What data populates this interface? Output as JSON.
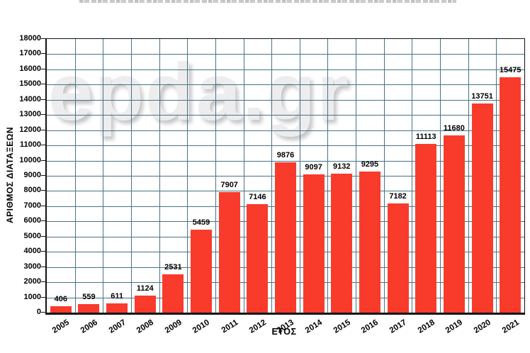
{
  "watermark": {
    "text": "epda.gr",
    "color": "#ededed"
  },
  "decorations": {
    "cropped_title_strip_visible": true
  },
  "chart_data": {
    "type": "bar",
    "categories": [
      "2005",
      "2006",
      "2007",
      "2008",
      "2009",
      "2010",
      "2011",
      "2012",
      "2013",
      "2014",
      "2015",
      "2016",
      "2017",
      "2018",
      "2019",
      "2020",
      "2021"
    ],
    "values": [
      406,
      559,
      611,
      1124,
      2531,
      5459,
      7907,
      7146,
      9876,
      9097,
      9132,
      9295,
      7182,
      11113,
      11680,
      13751,
      15475
    ],
    "title": "",
    "xlabel": "ΕΤΟΣ",
    "ylabel": "ΑΡΙΘΜΟΣ ΔΙΑΤΑΞΕΩΝ",
    "ylim": [
      0,
      18000
    ],
    "ytick_step": 1000,
    "grid": true,
    "legend": false,
    "value_labels": true,
    "bar_color": "#f93b2c",
    "grid_color": "#477384",
    "axis_color": "#111111"
  }
}
